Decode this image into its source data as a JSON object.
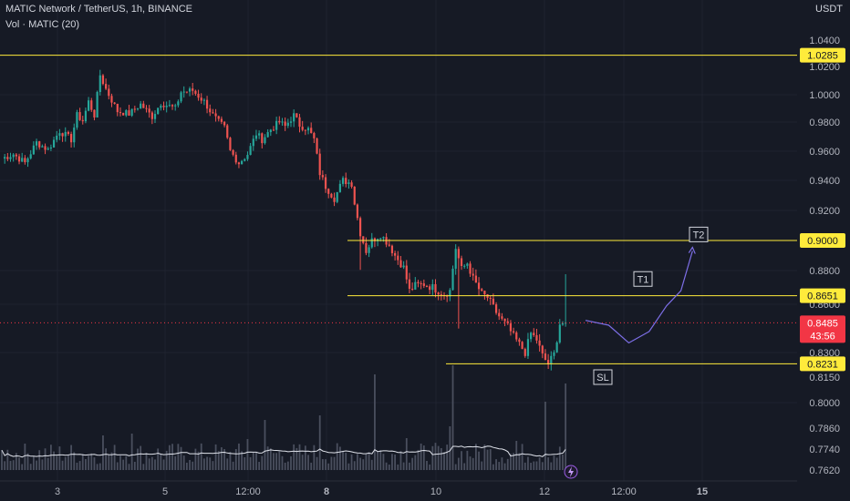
{
  "header": {
    "title": "MATIC Network / TetherUS, 1h, BINANCE",
    "volume_label": "Vol · MATIC (20)",
    "currency": "USDT"
  },
  "chart_data": {
    "type": "candlestick",
    "price_axis": {
      "ticks": [
        "1.0400",
        "1.0200",
        "1.0000",
        "0.9800",
        "0.9600",
        "0.9400",
        "0.9200",
        "0.8800",
        "0.8600",
        "0.8300",
        "0.8150",
        "0.8000",
        "0.7860",
        "0.7740",
        "0.7620"
      ]
    },
    "time_axis": {
      "ticks": [
        "3",
        "5",
        "12:00",
        "8",
        "10",
        "12",
        "12:00",
        "15"
      ]
    },
    "price_path": [
      [
        0,
        0.955
      ],
      [
        4,
        0.958
      ],
      [
        8,
        0.952
      ],
      [
        12,
        0.966
      ],
      [
        16,
        0.961
      ],
      [
        20,
        0.974
      ],
      [
        24,
        0.968
      ],
      [
        26,
        0.985
      ],
      [
        28,
        0.981
      ],
      [
        30,
        0.995
      ],
      [
        32,
        0.985
      ],
      [
        34,
        1.014
      ],
      [
        36,
        1.004
      ],
      [
        40,
        0.988
      ],
      [
        44,
        0.986
      ],
      [
        48,
        0.993
      ],
      [
        52,
        0.984
      ],
      [
        55,
        0.994
      ],
      [
        60,
        0.99
      ],
      [
        62,
        1.002
      ],
      [
        66,
        1.003
      ],
      [
        70,
        0.995
      ],
      [
        73,
        0.985
      ],
      [
        75,
        0.98
      ],
      [
        77,
        0.976
      ],
      [
        79,
        0.96
      ],
      [
        82,
        0.952
      ],
      [
        85,
        0.958
      ],
      [
        88,
        0.972
      ],
      [
        90,
        0.968
      ],
      [
        93,
        0.975
      ],
      [
        96,
        0.98
      ],
      [
        98,
        0.977
      ],
      [
        101,
        0.985
      ],
      [
        103,
        0.978
      ],
      [
        106,
        0.975
      ],
      [
        108,
        0.968
      ],
      [
        110,
        0.945
      ],
      [
        112,
        0.936
      ],
      [
        115,
        0.928
      ],
      [
        118,
        0.94
      ],
      [
        121,
        0.938
      ],
      [
        122,
        0.925
      ],
      [
        124,
        0.905
      ],
      [
        126,
        0.893
      ],
      [
        128,
        0.9
      ],
      [
        131,
        0.904
      ],
      [
        134,
        0.897
      ],
      [
        136,
        0.89
      ],
      [
        139,
        0.882
      ],
      [
        141,
        0.868
      ],
      [
        143,
        0.871
      ],
      [
        146,
        0.872
      ],
      [
        149,
        0.87
      ],
      [
        151,
        0.868
      ],
      [
        153,
        0.866
      ],
      [
        155,
        0.868
      ],
      [
        157,
        0.895
      ],
      [
        159,
        0.881
      ],
      [
        161,
        0.885
      ],
      [
        163,
        0.875
      ],
      [
        166,
        0.866
      ],
      [
        168,
        0.864
      ],
      [
        171,
        0.855
      ],
      [
        173,
        0.85
      ],
      [
        175,
        0.846
      ],
      [
        177,
        0.84
      ],
      [
        179,
        0.835
      ],
      [
        181,
        0.83
      ],
      [
        183,
        0.842
      ],
      [
        185,
        0.838
      ],
      [
        187,
        0.828
      ],
      [
        189,
        0.823
      ],
      [
        191,
        0.829
      ],
      [
        193,
        0.848
      ],
      [
        195,
        0.8485
      ]
    ],
    "volume_range": [
      0.762,
      0.83
    ],
    "levels": [
      {
        "value": 1.0285,
        "label": "1.0285",
        "color": "#ffeb3b"
      },
      {
        "value": 0.9,
        "label": "0.9000",
        "color": "#ffeb3b"
      },
      {
        "value": 0.8651,
        "label": "0.8651",
        "color": "#ffeb3b"
      },
      {
        "value": 0.8231,
        "label": "0.8231",
        "color": "#ffeb3b"
      }
    ],
    "last_price": {
      "value": 0.8485,
      "label": "0.8485",
      "countdown": "43:56",
      "color": "#f23645"
    },
    "annotations": [
      {
        "text": "T2",
        "price": 0.904
      },
      {
        "text": "T1",
        "price": 0.875
      },
      {
        "text": "SL",
        "price": 0.815
      }
    ],
    "projection_path": [
      [
        0,
        0.85
      ],
      [
        8,
        0.847
      ],
      [
        15,
        0.836
      ],
      [
        22,
        0.843
      ],
      [
        28,
        0.859
      ],
      [
        33,
        0.868
      ],
      [
        37,
        0.893
      ]
    ],
    "colors": {
      "up": "#26a69a",
      "down": "#ef5350",
      "background": "#161a25",
      "grid": "#1f2330",
      "text": "#d1d4dc",
      "volume": "#4a4f5e",
      "projection": "#7c6ee6"
    }
  }
}
